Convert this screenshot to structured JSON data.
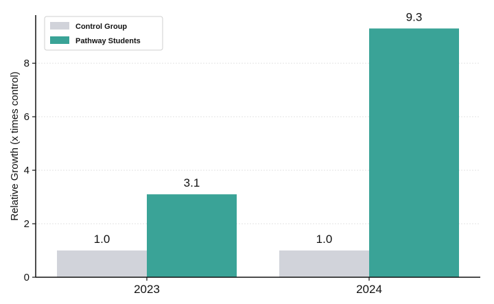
{
  "chart_data": {
    "type": "bar",
    "categories": [
      "2023",
      "2024"
    ],
    "series": [
      {
        "name": "Control Group",
        "values": [
          1.0,
          1.0
        ],
        "color": "#d1d3da"
      },
      {
        "name": "Pathway Students",
        "values": [
          3.1,
          9.3
        ],
        "color": "#3aa397"
      }
    ],
    "data_labels": [
      [
        "1.0",
        "1.0"
      ],
      [
        "3.1",
        "9.3"
      ]
    ],
    "ylabel": "Relative Growth (x times control)",
    "xlabel": "",
    "ylim": [
      0,
      9.8
    ],
    "yticks": [
      0,
      2,
      4,
      6,
      8
    ],
    "grid": true,
    "legend_position": "top-left"
  }
}
